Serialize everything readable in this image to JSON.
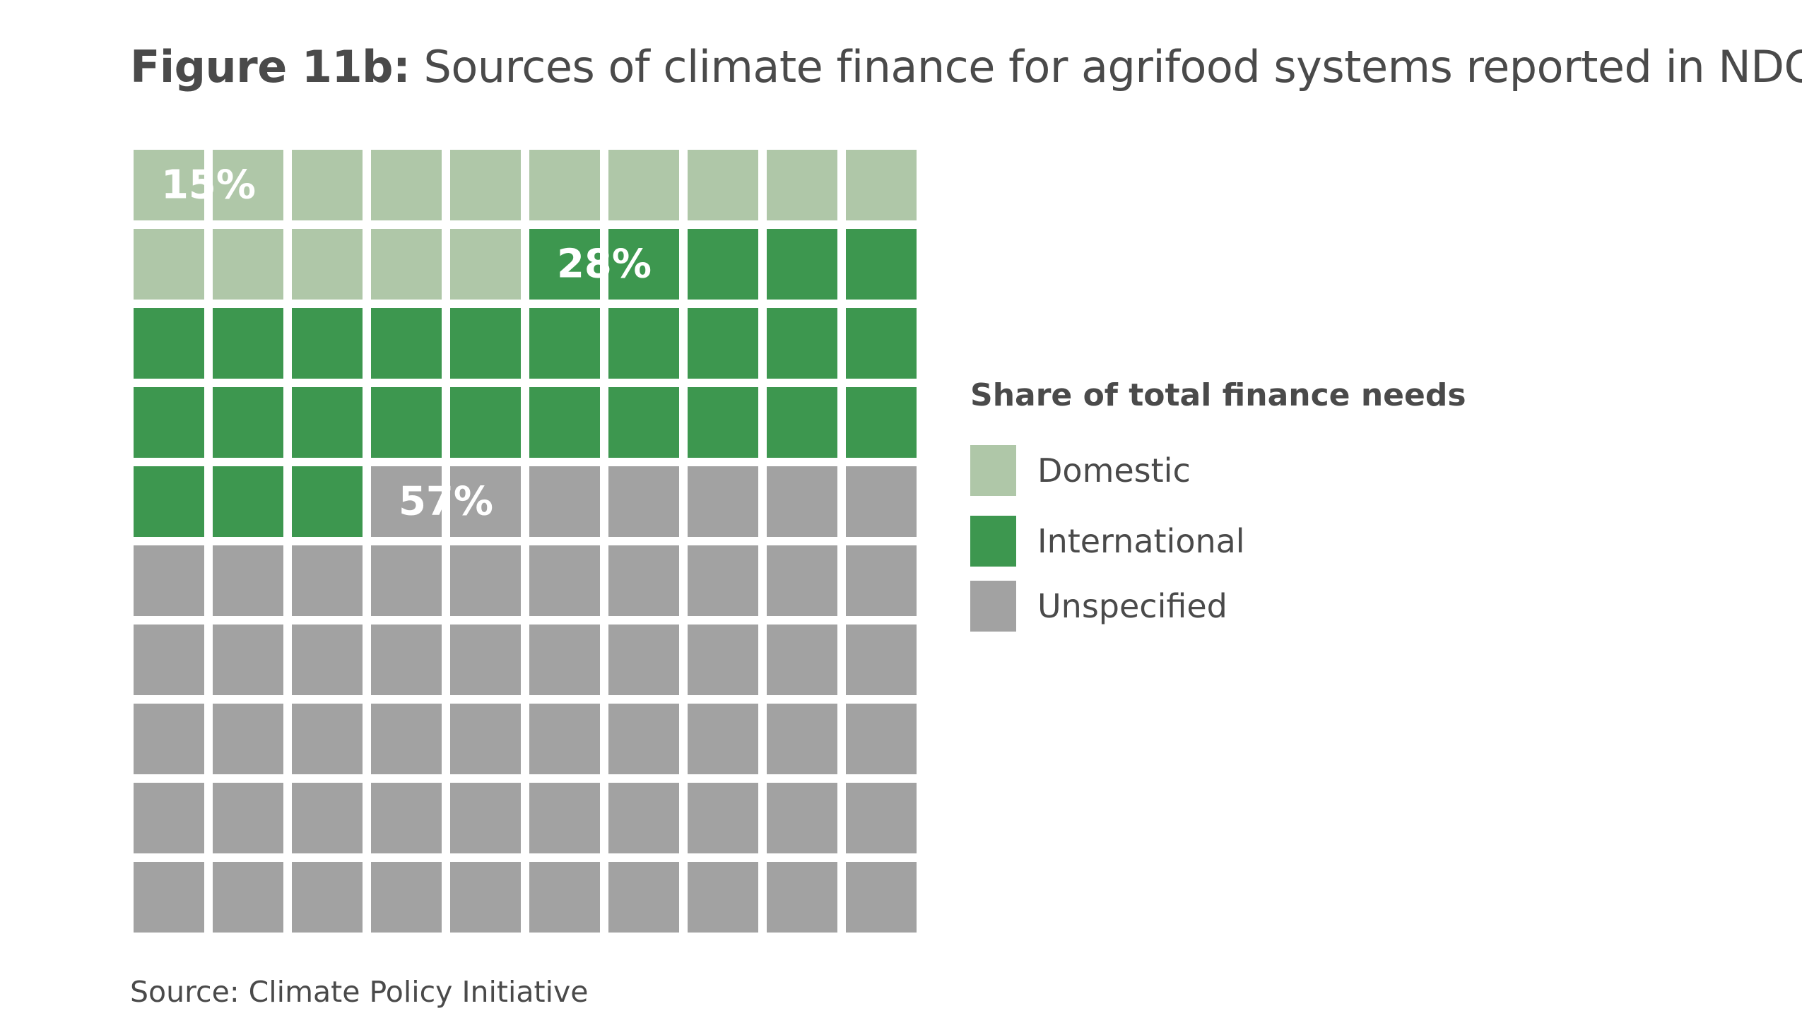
{
  "title": {
    "label": "Figure 11b:",
    "text": "Sources of climate finance for agrifood systems reported in NDCs"
  },
  "source": "Source: Climate Policy Initiative",
  "legend": {
    "title": "Share of total finance needs",
    "placement": "right",
    "items": [
      {
        "label": "Domestic",
        "color": "#afc7a8"
      },
      {
        "label": "International",
        "color": "#3d974f"
      },
      {
        "label": "Unspecified",
        "color": "#a2a2a2"
      }
    ]
  },
  "chart_data": {
    "type": "waffle",
    "grid": {
      "rows": 10,
      "columns": 10,
      "unit": "percent"
    },
    "title": "Sources of climate finance for agrifood systems reported in NDCs",
    "categories": [
      "Domestic",
      "International",
      "Unspecified"
    ],
    "values": [
      15,
      28,
      57
    ],
    "data_labels": [
      "15%",
      "28%",
      "57%"
    ],
    "colors": [
      "#afc7a8",
      "#3d974f",
      "#a2a2a2"
    ],
    "label_color": "#ffffff"
  }
}
